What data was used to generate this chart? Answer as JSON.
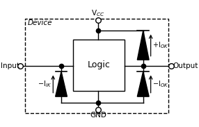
{
  "bg_color": "#ffffff",
  "device_label": {
    "text": "Device",
    "fontsize": 7.5
  },
  "logic_text": "Logic",
  "logic_fontsize": 9,
  "vcc_text": "V$_{CC}$",
  "gnd_text": "GND",
  "input_text": "Input",
  "output_text": "Output",
  "iok_pos_text": "+I$_{OK}$",
  "iok_neg_text": "−I$_{OK}$",
  "iik_neg_text": "−I$_{IK}$",
  "label_fontsize": 7,
  "term_fontsize": 7.5
}
